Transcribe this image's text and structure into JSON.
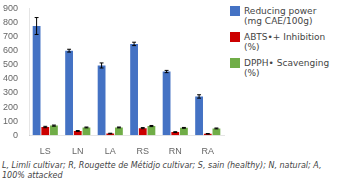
{
  "chart_data": {
    "type": "bar",
    "categories": [
      "LS",
      "LN",
      "LA",
      "RS",
      "RN",
      "RA"
    ],
    "series": [
      {
        "name": "Reducing power\n(mg CAE/100g)",
        "color": "#4472C4",
        "values": [
          775,
          600,
          495,
          648,
          452,
          275
        ],
        "errors": [
          60,
          10,
          18,
          12,
          8,
          12
        ]
      },
      {
        "name": "ABTS•+ Inhibition\n(%)",
        "color": "#CC0000",
        "values": [
          58,
          30,
          12,
          50,
          22,
          10
        ],
        "errors": [
          5,
          3,
          2,
          4,
          3,
          2
        ]
      },
      {
        "name": "DPPH• Scavenging\n(%)",
        "color": "#70AD47",
        "values": [
          68,
          55,
          55,
          65,
          52,
          48
        ],
        "errors": [
          4,
          3,
          3,
          4,
          3,
          3
        ]
      }
    ],
    "ylim": [
      0,
      900
    ],
    "yticks": [
      0,
      100,
      200,
      300,
      400,
      500,
      600,
      700,
      800,
      900
    ],
    "grid": false,
    "legend": "right",
    "caption": "L, Limli cultivar; R, Rougette de Métidjo cultivar; S, sain (healthy); N, natural; A, 100% attacked"
  }
}
